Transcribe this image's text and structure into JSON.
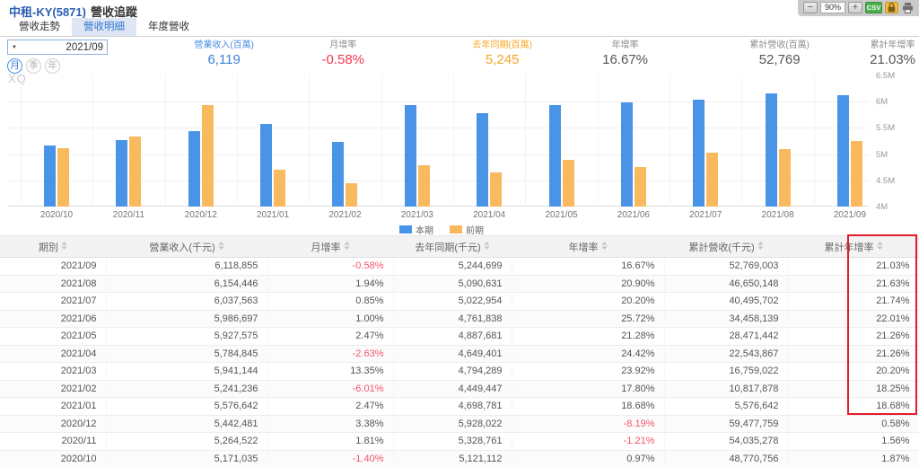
{
  "header": {
    "symbol": "中租-KY(5871)",
    "page_title": "營收追蹤",
    "zoom_out": "−",
    "zoom_level": "90%",
    "zoom_in": "+",
    "csv": "CSV"
  },
  "tabs": [
    {
      "id": "revenue-trend",
      "label": "營收走勢",
      "active": false
    },
    {
      "id": "revenue-detail",
      "label": "營收明細",
      "active": true
    },
    {
      "id": "annual-revenue",
      "label": "年度營收",
      "active": false
    }
  ],
  "controls": {
    "period_value": "2021/09",
    "caret": "▼",
    "period_buttons": [
      {
        "id": "month",
        "label": "月",
        "active": true
      },
      {
        "id": "quarter",
        "label": "季",
        "active": false
      },
      {
        "id": "year",
        "label": "年",
        "active": false
      }
    ]
  },
  "stats": [
    {
      "id": "revenue",
      "label": "營業收入(百萬)",
      "value": "6,119",
      "label_color": "#4a90e2",
      "value_color": "#3b82d9"
    },
    {
      "id": "mom",
      "label": "月增率",
      "value": "-0.58%",
      "label_color": "#8c8c8c",
      "value_color": "#f2374d"
    },
    {
      "id": "prev-year",
      "label": "去年同期(百萬)",
      "value": "5,245",
      "label_color": "#f5a623",
      "value_color": "#f5a623"
    },
    {
      "id": "yoy",
      "label": "年增率",
      "value": "16.67%",
      "label_color": "#8c8c8c",
      "value_color": "#555555"
    },
    {
      "id": "cum-revenue",
      "label": "累計營收(百萬)",
      "value": "52,769",
      "label_color": "#8c8c8c",
      "value_color": "#555555"
    },
    {
      "id": "cum-yoy",
      "label": "累計年增率",
      "value": "21.03%",
      "label_color": "#8c8c8c",
      "value_color": "#555555"
    }
  ],
  "watermark": "XQ",
  "chart_data": {
    "type": "bar",
    "title": "",
    "unit": "千元",
    "categories": [
      "2020/10",
      "2020/11",
      "2020/12",
      "2021/01",
      "2021/02",
      "2021/03",
      "2021/04",
      "2021/05",
      "2021/06",
      "2021/07",
      "2021/08",
      "2021/09"
    ],
    "series": [
      {
        "name": "本期",
        "color": "#4a94e8",
        "values": [
          5171035,
          5264522,
          5442481,
          5576642,
          5241236,
          5941144,
          5784845,
          5927575,
          5986697,
          6037563,
          6154446,
          6118855
        ]
      },
      {
        "name": "前期",
        "color": "#f8b95f",
        "values": [
          5121112,
          5328761,
          5928022,
          4698781,
          4449447,
          4794289,
          4649401,
          4887681,
          4761838,
          5022954,
          5090631,
          5244699
        ]
      }
    ],
    "ylim": [
      4000000,
      6500000
    ],
    "yticks": [
      {
        "label": "6.5M",
        "value": 6500000
      },
      {
        "label": "6M",
        "value": 6000000
      },
      {
        "label": "5.5M",
        "value": 5500000
      },
      {
        "label": "5M",
        "value": 5000000
      },
      {
        "label": "4.5M",
        "value": 4500000
      },
      {
        "label": "4M",
        "value": 4000000
      }
    ],
    "grid": true,
    "legend_position": "bottom"
  },
  "table": {
    "columns": [
      {
        "id": "period",
        "label": "期別"
      },
      {
        "id": "revenue",
        "label": "營業收入(千元)"
      },
      {
        "id": "mom",
        "label": "月增率"
      },
      {
        "id": "prev-year",
        "label": "去年同期(千元)"
      },
      {
        "id": "yoy",
        "label": "年增率"
      },
      {
        "id": "cum-revenue",
        "label": "累計營收(千元)"
      },
      {
        "id": "cum-yoy",
        "label": "累計年增率"
      }
    ],
    "rows": [
      [
        "2021/09",
        "6,118,855",
        "-0.58%",
        "5,244,699",
        "16.67%",
        "52,769,003",
        "21.03%"
      ],
      [
        "2021/08",
        "6,154,446",
        "1.94%",
        "5,090,631",
        "20.90%",
        "46,650,148",
        "21.63%"
      ],
      [
        "2021/07",
        "6,037,563",
        "0.85%",
        "5,022,954",
        "20.20%",
        "40,495,702",
        "21.74%"
      ],
      [
        "2021/06",
        "5,986,697",
        "1.00%",
        "4,761,838",
        "25.72%",
        "34,458,139",
        "22.01%"
      ],
      [
        "2021/05",
        "5,927,575",
        "2.47%",
        "4,887,681",
        "21.28%",
        "28,471,442",
        "21.26%"
      ],
      [
        "2021/04",
        "5,784,845",
        "-2.63%",
        "4,649,401",
        "24.42%",
        "22,543,867",
        "21.26%"
      ],
      [
        "2021/03",
        "5,941,144",
        "13.35%",
        "4,794,289",
        "23.92%",
        "16,759,022",
        "20.20%"
      ],
      [
        "2021/02",
        "5,241,236",
        "-6.01%",
        "4,449,447",
        "17.80%",
        "10,817,878",
        "18.25%"
      ],
      [
        "2021/01",
        "5,576,642",
        "2.47%",
        "4,698,781",
        "18.68%",
        "5,576,642",
        "18.68%"
      ],
      [
        "2020/12",
        "5,442,481",
        "3.38%",
        "5,928,022",
        "-8.19%",
        "59,477,759",
        "0.58%"
      ],
      [
        "2020/11",
        "5,264,522",
        "1.81%",
        "5,328,761",
        "-1.21%",
        "54,035,278",
        "1.56%"
      ],
      [
        "2020/10",
        "5,171,035",
        "-1.40%",
        "5,121,112",
        "0.97%",
        "48,770,756",
        "1.87%"
      ]
    ],
    "negative_color": "#f2556d",
    "highlight": {
      "column": "累計年增率",
      "from_row": "2021/09",
      "to_row": "2021/01",
      "color": "#e8192c"
    }
  }
}
